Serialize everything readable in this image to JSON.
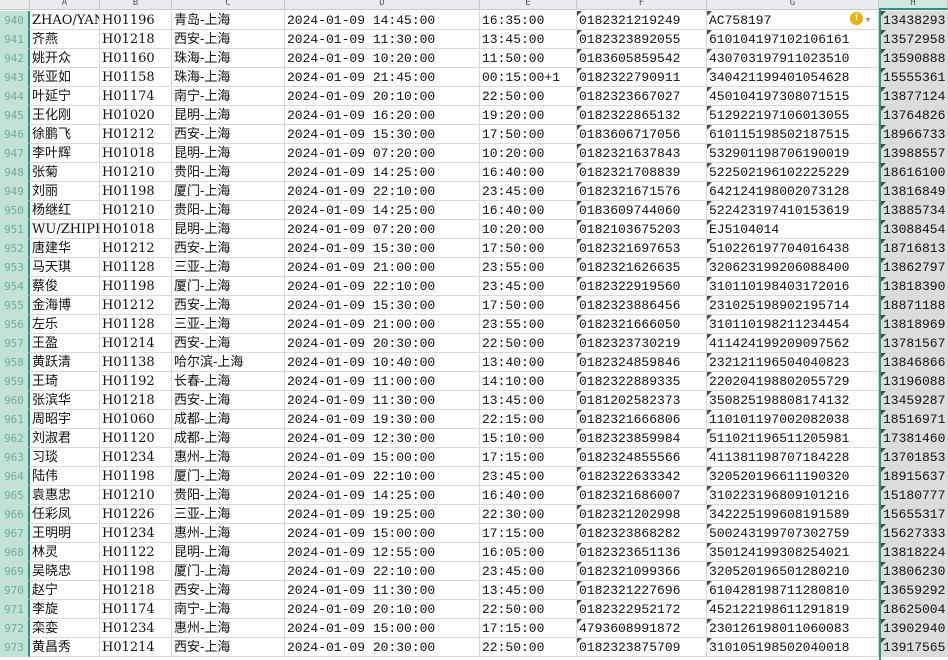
{
  "columns": [
    "A",
    "B",
    "C",
    "D",
    "E",
    "F",
    "G",
    "H"
  ],
  "selected_column": "H",
  "accent_color": "#1e9b7b",
  "warning_icon": "exclamation-circle-icon",
  "rows": [
    [
      "940",
      "ZHAO/YAN",
      "H01196",
      "青岛-上海",
      "2024-01-09 14:45:00",
      "16:35:00",
      "0182321219249",
      "AC758197",
      "13438293"
    ],
    [
      "941",
      "齐燕",
      "H01218",
      "西安-上海",
      "2024-01-09 11:30:00",
      "13:45:00",
      "0182323892055",
      "610104197102106161",
      "13572958"
    ],
    [
      "942",
      "姚开众",
      "H01160",
      "珠海-上海",
      "2024-01-09 10:20:00",
      "11:50:00",
      "0183605859542",
      "430703197911023510",
      "13590888"
    ],
    [
      "943",
      "张亚如",
      "H01158",
      "珠海-上海",
      "2024-01-09 21:45:00",
      "00:15:00+1",
      "0182322790911",
      "340421199401054628",
      "15555361"
    ],
    [
      "944",
      "叶延宁",
      "H01174",
      "南宁-上海",
      "2024-01-09 20:10:00",
      "22:50:00",
      "0182323667027",
      "450104197308071515",
      "13877124"
    ],
    [
      "945",
      "王化刚",
      "H01020",
      "昆明-上海",
      "2024-01-09 16:20:00",
      "19:20:00",
      "0182322865132",
      "512922197106013055",
      "13764826"
    ],
    [
      "946",
      "徐鹏飞",
      "H01212",
      "西安-上海",
      "2024-01-09 15:30:00",
      "17:50:00",
      "0183606717056",
      "610115198502187515",
      "18966733"
    ],
    [
      "947",
      "李叶辉",
      "H01018",
      "昆明-上海",
      "2024-01-09 07:20:00",
      "10:20:00",
      "0182321637843",
      "532901198706190019",
      "13988557"
    ],
    [
      "948",
      "张菊",
      "H01210",
      "贵阳-上海",
      "2024-01-09 14:25:00",
      "16:40:00",
      "0182321708839",
      "522502196102225229",
      "18616100"
    ],
    [
      "949",
      "刘丽",
      "H01198",
      "厦门-上海",
      "2024-01-09 22:10:00",
      "23:45:00",
      "0182321671576",
      "642124198002073128",
      "13816849"
    ],
    [
      "950",
      "杨继红",
      "H01210",
      "贵阳-上海",
      "2024-01-09 14:25:00",
      "16:40:00",
      "0183609744060",
      "522423197410153619",
      "13885734"
    ],
    [
      "951",
      "WU/ZHIPEN",
      "H01018",
      "昆明-上海",
      "2024-01-09 07:20:00",
      "10:20:00",
      "0182103675203",
      "EJ5104014",
      "13088454"
    ],
    [
      "952",
      "唐建华",
      "H01212",
      "西安-上海",
      "2024-01-09 15:30:00",
      "17:50:00",
      "0182321697653",
      "510226197704016438",
      "18716813"
    ],
    [
      "953",
      "马天琪",
      "H01128",
      "三亚-上海",
      "2024-01-09 21:00:00",
      "23:55:00",
      "0182321626635",
      "320623199206088400",
      "13862797"
    ],
    [
      "954",
      "蔡俊",
      "H01198",
      "厦门-上海",
      "2024-01-09 22:10:00",
      "23:45:00",
      "0182322919560",
      "310110198403172016",
      "13818390"
    ],
    [
      "955",
      "金海博",
      "H01212",
      "西安-上海",
      "2024-01-09 15:30:00",
      "17:50:00",
      "0182323886456",
      "231025198902195714",
      "18871188"
    ],
    [
      "956",
      "左乐",
      "H01128",
      "三亚-上海",
      "2024-01-09 21:00:00",
      "23:55:00",
      "0182321666050",
      "310110198211234454",
      "13818969"
    ],
    [
      "957",
      "王盈",
      "H01214",
      "西安-上海",
      "2024-01-09 20:30:00",
      "22:50:00",
      "0182323730219",
      "411424199209097562",
      "13781567"
    ],
    [
      "958",
      "黄跃清",
      "H01138",
      "哈尔滨-上海",
      "2024-01-09 10:40:00",
      "13:40:00",
      "0182324859846",
      "232121196504040823",
      "13846866"
    ],
    [
      "959",
      "王琦",
      "H01192",
      "长春-上海",
      "2024-01-09 11:00:00",
      "14:10:00",
      "0182322889335",
      "220204198802055729",
      "13196088"
    ],
    [
      "960",
      "张滨华",
      "H01218",
      "西安-上海",
      "2024-01-09 11:30:00",
      "13:45:00",
      "0181202582373",
      "350825198808174132",
      "13459287"
    ],
    [
      "961",
      "周昭宇",
      "H01060",
      "成都-上海",
      "2024-01-09 19:30:00",
      "22:15:00",
      "0182321666806",
      "110101197002082038",
      "18516971"
    ],
    [
      "962",
      "刘淑君",
      "H01120",
      "成都-上海",
      "2024-01-09 12:30:00",
      "15:10:00",
      "0182323859984",
      "511021196511205981",
      "17381460"
    ],
    [
      "963",
      "习琰",
      "H01234",
      "惠州-上海",
      "2024-01-09 15:00:00",
      "17:15:00",
      "0182324855566",
      "411381198707184228",
      "13701853"
    ],
    [
      "964",
      "陆伟",
      "H01198",
      "厦门-上海",
      "2024-01-09 22:10:00",
      "23:45:00",
      "0182322633342",
      "320520196611190320",
      "18915637"
    ],
    [
      "965",
      "袁惠忠",
      "H01210",
      "贵阳-上海",
      "2024-01-09 14:25:00",
      "16:40:00",
      "0182321686007",
      "310223196809101216",
      "15180777"
    ],
    [
      "966",
      "任彩凤",
      "H01226",
      "三亚-上海",
      "2024-01-09 19:25:00",
      "22:30:00",
      "0182321202998",
      "342225199608191589",
      "15655317"
    ],
    [
      "967",
      "王明明",
      "H01234",
      "惠州-上海",
      "2024-01-09 15:00:00",
      "17:15:00",
      "0182323868282",
      "500243199707302759",
      "15627333"
    ],
    [
      "968",
      "林灵",
      "H01122",
      "昆明-上海",
      "2024-01-09 12:55:00",
      "16:05:00",
      "0182323651136",
      "350124199308254021",
      "13818224"
    ],
    [
      "969",
      "吴晓忠",
      "H01198",
      "厦门-上海",
      "2024-01-09 22:10:00",
      "23:45:00",
      "0182321099366",
      "320520196501280210",
      "13806230"
    ],
    [
      "970",
      "赵宁",
      "H01218",
      "西安-上海",
      "2024-01-09 11:30:00",
      "13:45:00",
      "0182321227696",
      "610428198711280810",
      "13659292"
    ],
    [
      "971",
      "李旋",
      "H01174",
      "南宁-上海",
      "2024-01-09 20:10:00",
      "22:50:00",
      "0182322952172",
      "452122198611291819",
      "18625004"
    ],
    [
      "972",
      "栾娈",
      "H01234",
      "惠州-上海",
      "2024-01-09 15:00:00",
      "17:15:00",
      "4793608991872",
      "230126198011060083",
      "13902940"
    ],
    [
      "973",
      "黄昌秀",
      "H01214",
      "西安-上海",
      "2024-01-09 20:30:00",
      "22:50:00",
      "0182323875709",
      "310105198502040018",
      "13917565"
    ]
  ]
}
